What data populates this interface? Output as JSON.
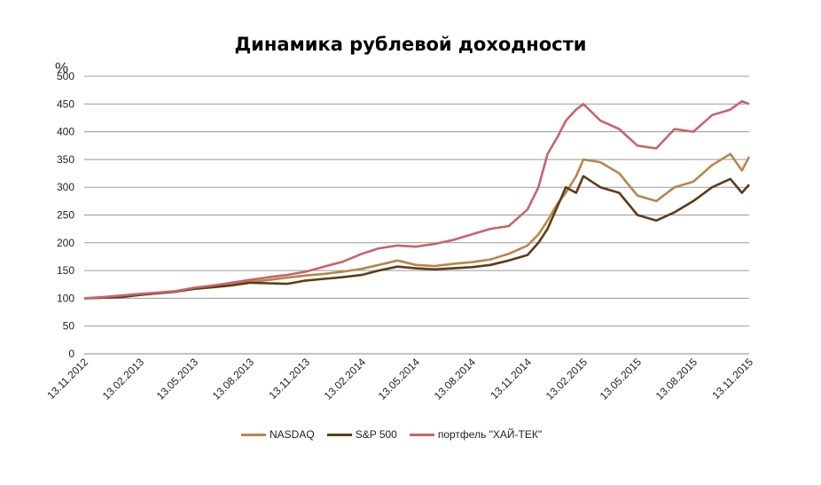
{
  "chart_data": {
    "type": "line",
    "title": "Динамика рублевой доходности",
    "ylabel": "%",
    "xlabel": "",
    "ylim": [
      0,
      500
    ],
    "yticks": [
      0,
      50,
      100,
      150,
      200,
      250,
      300,
      350,
      400,
      450,
      500
    ],
    "xlim": [
      "13.11.2012",
      "13.11.2015"
    ],
    "xticks": [
      "13.11.2012",
      "13.02.2013",
      "13.05.2013",
      "13.08.2013",
      "13.11.2013",
      "13.02.2014",
      "13.05.2014",
      "13.08.2014",
      "13.11.2014",
      "13.02.2015",
      "13.05.2015",
      "13.08.2015",
      "13.11.2015"
    ],
    "grid": "horizontal",
    "legend_position": "bottom",
    "x": [
      "13.11.2012",
      "13.12.2012",
      "13.01.2013",
      "13.02.2013",
      "13.03.2013",
      "13.04.2013",
      "13.05.2013",
      "13.06.2013",
      "13.07.2013",
      "13.08.2013",
      "13.09.2013",
      "13.10.2013",
      "13.11.2013",
      "13.12.2013",
      "13.01.2014",
      "13.02.2014",
      "13.03.2014",
      "13.04.2014",
      "13.05.2014",
      "13.06.2014",
      "13.07.2014",
      "13.08.2014",
      "13.09.2014",
      "13.10.2014",
      "13.11.2014",
      "01.12.2014",
      "16.12.2014",
      "01.01.2015",
      "15.01.2015",
      "01.02.2015",
      "13.02.2015",
      "13.03.2015",
      "13.04.2015",
      "13.05.2015",
      "13.06.2015",
      "13.07.2015",
      "13.08.2015",
      "13.09.2015",
      "13.10.2015",
      "01.11.2015",
      "13.11.2015"
    ],
    "series": [
      {
        "name": "NASDAQ",
        "color": "#b8864a",
        "values": [
          100,
          101,
          103,
          106,
          109,
          112,
          118,
          121,
          125,
          129,
          133,
          137,
          141,
          144,
          148,
          153,
          160,
          168,
          160,
          158,
          162,
          165,
          170,
          180,
          195,
          215,
          240,
          270,
          290,
          320,
          350,
          345,
          325,
          285,
          275,
          300,
          310,
          340,
          360,
          330,
          355
        ]
      },
      {
        "name": "S&P 500",
        "color": "#5b3d1a",
        "values": [
          100,
          101,
          102,
          106,
          109,
          112,
          117,
          120,
          123,
          128,
          127,
          126,
          132,
          135,
          138,
          142,
          150,
          157,
          154,
          152,
          154,
          156,
          160,
          168,
          178,
          200,
          225,
          265,
          300,
          290,
          320,
          300,
          290,
          250,
          240,
          255,
          275,
          300,
          315,
          290,
          305
        ]
      },
      {
        "name": "портфель  \"ХАЙ-ТЕК\"",
        "color": "#c8646a",
        "values": [
          100,
          102,
          105,
          108,
          110,
          113,
          119,
          123,
          128,
          133,
          138,
          142,
          148,
          157,
          166,
          180,
          190,
          195,
          193,
          198,
          205,
          215,
          225,
          230,
          260,
          300,
          360,
          390,
          420,
          440,
          450,
          420,
          405,
          375,
          370,
          405,
          400,
          430,
          440,
          455,
          450
        ]
      }
    ]
  }
}
